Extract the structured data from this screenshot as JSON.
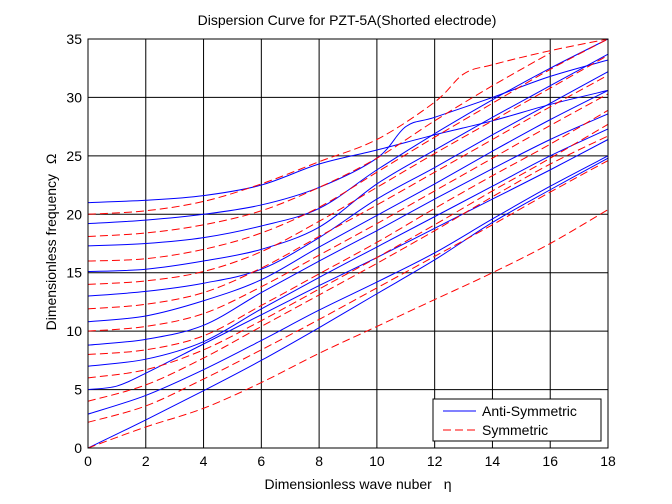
{
  "chart_data": {
    "type": "line",
    "title": "Dispersion Curve for PZT-5A(Shorted electrode)",
    "xlabel": "Dimensionless wave nuber",
    "xlabel_symbol": "η",
    "ylabel": "Dimensionless frequency",
    "ylabel_symbol": "Ω",
    "xlim": [
      0,
      18
    ],
    "ylim": [
      0,
      35
    ],
    "xticks": [
      0,
      2,
      4,
      6,
      8,
      10,
      12,
      14,
      16,
      18
    ],
    "yticks": [
      0,
      5,
      10,
      15,
      20,
      25,
      30,
      35
    ],
    "grid": true,
    "legend_position": "bottom-right",
    "colors": {
      "anti": "#0000ff",
      "sym": "#ff0000",
      "axis": "#000000"
    },
    "series": [
      {
        "name": "Anti-Symmetric",
        "style": "solid",
        "curves": [
          [
            [
              0,
              0
            ],
            [
              2,
              2.4
            ],
            [
              4,
              4.9
            ],
            [
              6,
              7.5
            ],
            [
              8,
              10.3
            ],
            [
              10,
              13.2
            ],
            [
              12,
              16.1
            ],
            [
              14,
              19.3
            ],
            [
              16,
              22.1
            ],
            [
              18,
              24.8
            ]
          ],
          [
            [
              0,
              2.9
            ],
            [
              2,
              4.5
            ],
            [
              4,
              6.7
            ],
            [
              6,
              9.2
            ],
            [
              8,
              11.8
            ],
            [
              10,
              14.2
            ],
            [
              12,
              16.7
            ],
            [
              14,
              19.6
            ],
            [
              16,
              22.4
            ],
            [
              18,
              25.0
            ]
          ],
          [
            [
              0,
              5.0
            ],
            [
              1,
              5.3
            ],
            [
              2,
              6.4
            ],
            [
              4,
              8.9
            ],
            [
              6,
              11.4
            ],
            [
              8,
              13.9
            ],
            [
              10,
              16.3
            ],
            [
              12,
              18.8
            ],
            [
              14,
              21.3
            ],
            [
              16,
              23.8
            ],
            [
              18,
              26.4
            ]
          ],
          [
            [
              0,
              7.0
            ],
            [
              2,
              7.6
            ],
            [
              4,
              9.1
            ],
            [
              6,
              11.9
            ],
            [
              8,
              14.6
            ],
            [
              10,
              17.2
            ],
            [
              12,
              19.8
            ],
            [
              14,
              22.4
            ],
            [
              16,
              25.0
            ],
            [
              18,
              27.3
            ]
          ],
          [
            [
              0,
              8.8
            ],
            [
              2,
              9.3
            ],
            [
              4,
              10.5
            ],
            [
              6,
              13.3
            ],
            [
              8,
              16.0
            ],
            [
              10,
              18.6
            ],
            [
              12,
              21.3
            ],
            [
              14,
              23.9
            ],
            [
              16,
              26.4
            ],
            [
              18,
              28.6
            ]
          ],
          [
            [
              0,
              10.8
            ],
            [
              2,
              11.3
            ],
            [
              4,
              12.6
            ],
            [
              6,
              14.4
            ],
            [
              8,
              17.2
            ],
            [
              10,
              19.9
            ],
            [
              12,
              22.6
            ],
            [
              14,
              25.4
            ],
            [
              16,
              28.1
            ],
            [
              18,
              30.6
            ]
          ],
          [
            [
              0,
              13.0
            ],
            [
              2,
              13.4
            ],
            [
              4,
              14.1
            ],
            [
              6,
              15.3
            ],
            [
              8,
              18.0
            ],
            [
              10,
              21.3
            ],
            [
              12,
              24.0
            ],
            [
              14,
              26.8
            ],
            [
              16,
              29.5
            ],
            [
              18,
              32.2
            ]
          ],
          [
            [
              0,
              15.1
            ],
            [
              2,
              15.3
            ],
            [
              4,
              16.0
            ],
            [
              6,
              17.0
            ],
            [
              8,
              18.9
            ],
            [
              10,
              22.6
            ],
            [
              12,
              25.5
            ],
            [
              14,
              28.3
            ],
            [
              16,
              31.0
            ],
            [
              18,
              33.7
            ]
          ],
          [
            [
              0,
              17.3
            ],
            [
              2,
              17.5
            ],
            [
              4,
              18.0
            ],
            [
              6,
              19.0
            ],
            [
              8,
              20.5
            ],
            [
              10,
              23.8
            ],
            [
              12,
              26.9
            ],
            [
              14,
              29.8
            ],
            [
              16,
              32.5
            ],
            [
              18,
              35.0
            ]
          ],
          [
            [
              0,
              19.2
            ],
            [
              2,
              19.5
            ],
            [
              4,
              20.0
            ],
            [
              6,
              20.8
            ],
            [
              8,
              22.3
            ],
            [
              10,
              24.8
            ],
            [
              11,
              27.5
            ],
            [
              12,
              28.3
            ],
            [
              14,
              30.0
            ],
            [
              16,
              31.8
            ],
            [
              18,
              33.2
            ]
          ],
          [
            [
              0,
              21.0
            ],
            [
              2,
              21.2
            ],
            [
              4,
              21.6
            ],
            [
              6,
              22.5
            ],
            [
              8,
              24.3
            ],
            [
              10,
              25.5
            ],
            [
              12,
              26.8
            ],
            [
              14,
              28.0
            ],
            [
              16,
              29.4
            ],
            [
              18,
              30.6
            ]
          ]
        ]
      },
      {
        "name": "Symmetric",
        "style": "dashed",
        "curves": [
          [
            [
              0,
              0
            ],
            [
              2,
              1.8
            ],
            [
              4,
              3.4
            ],
            [
              6,
              5.6
            ],
            [
              8,
              8.1
            ],
            [
              10,
              10.4
            ],
            [
              12,
              12.7
            ],
            [
              14,
              15.0
            ],
            [
              16,
              17.5
            ],
            [
              18,
              20.4
            ]
          ],
          [
            [
              0,
              2.2
            ],
            [
              2,
              3.6
            ],
            [
              4,
              5.9
            ],
            [
              6,
              8.4
            ],
            [
              8,
              11.0
            ],
            [
              10,
              13.7
            ],
            [
              12,
              16.4
            ],
            [
              14,
              19.1
            ],
            [
              16,
              21.9
            ],
            [
              18,
              24.6
            ]
          ],
          [
            [
              0,
              4.0
            ],
            [
              2,
              5.4
            ],
            [
              4,
              7.7
            ],
            [
              6,
              10.4
            ],
            [
              8,
              13.1
            ],
            [
              10,
              15.8
            ],
            [
              12,
              18.6
            ],
            [
              14,
              21.5
            ],
            [
              16,
              24.3
            ],
            [
              18,
              26.7
            ]
          ],
          [
            [
              0,
              6.0
            ],
            [
              2,
              6.7
            ],
            [
              4,
              8.4
            ],
            [
              6,
              10.9
            ],
            [
              8,
              13.6
            ],
            [
              10,
              16.3
            ],
            [
              12,
              19.1
            ],
            [
              14,
              22.0
            ],
            [
              16,
              24.8
            ],
            [
              18,
              27.7
            ]
          ],
          [
            [
              0,
              8.0
            ],
            [
              2,
              8.4
            ],
            [
              4,
              9.6
            ],
            [
              6,
              12.2
            ],
            [
              8,
              14.9
            ],
            [
              10,
              17.6
            ],
            [
              12,
              20.5
            ],
            [
              14,
              23.3
            ],
            [
              16,
              26.0
            ],
            [
              18,
              28.9
            ]
          ],
          [
            [
              0,
              10.0
            ],
            [
              2,
              10.4
            ],
            [
              4,
              11.5
            ],
            [
              6,
              13.8
            ],
            [
              8,
              16.5
            ],
            [
              10,
              19.2
            ],
            [
              12,
              22.0
            ],
            [
              14,
              24.8
            ],
            [
              16,
              27.6
            ],
            [
              18,
              30.3
            ]
          ],
          [
            [
              0,
              11.9
            ],
            [
              2,
              12.3
            ],
            [
              4,
              13.3
            ],
            [
              6,
              15.4
            ],
            [
              8,
              18.1
            ],
            [
              10,
              20.8
            ],
            [
              12,
              23.6
            ],
            [
              14,
              26.4
            ],
            [
              16,
              29.2
            ],
            [
              18,
              31.9
            ]
          ],
          [
            [
              0,
              14.0
            ],
            [
              2,
              14.3
            ],
            [
              4,
              15.1
            ],
            [
              6,
              16.8
            ],
            [
              8,
              19.4
            ],
            [
              10,
              22.3
            ],
            [
              12,
              25.2
            ],
            [
              14,
              28.0
            ],
            [
              16,
              30.8
            ],
            [
              18,
              33.6
            ]
          ],
          [
            [
              0,
              16.0
            ],
            [
              2,
              16.2
            ],
            [
              4,
              17.0
            ],
            [
              6,
              18.4
            ],
            [
              8,
              20.6
            ],
            [
              10,
              23.6
            ],
            [
              12,
              26.6
            ],
            [
              14,
              29.5
            ],
            [
              16,
              32.4
            ],
            [
              18,
              35.0
            ]
          ],
          [
            [
              0,
              18.1
            ],
            [
              2,
              18.4
            ],
            [
              4,
              19.1
            ],
            [
              6,
              20.3
            ],
            [
              8,
              22.3
            ],
            [
              10,
              24.8
            ],
            [
              12,
              28.0
            ],
            [
              14,
              31.0
            ],
            [
              16,
              33.8
            ]
          ],
          [
            [
              0,
              20.0
            ],
            [
              2,
              20.3
            ],
            [
              4,
              21.1
            ],
            [
              6,
              22.6
            ],
            [
              8,
              24.5
            ],
            [
              10,
              26.4
            ],
            [
              12,
              29.6
            ],
            [
              13,
              32.0
            ],
            [
              14,
              32.8
            ],
            [
              16,
              34.0
            ],
            [
              18,
              35.0
            ]
          ]
        ]
      }
    ]
  }
}
